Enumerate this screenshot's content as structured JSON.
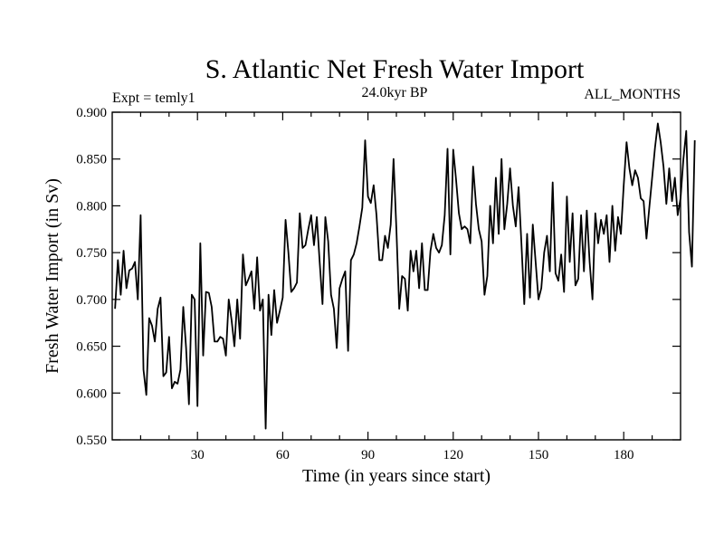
{
  "chart_data": {
    "type": "line",
    "title": "S. Atlantic Net Fresh Water Import",
    "subtitle_left": "Expt = temly1",
    "subtitle_center": "24.0kyr BP",
    "subtitle_right": "ALL_MONTHS",
    "xlabel": "Time (in years since start)",
    "ylabel": "Fresh Water Import (in Sv)",
    "xlim": [
      0,
      200
    ],
    "ylim": [
      0.55,
      0.9
    ],
    "xticks": [
      30,
      60,
      90,
      120,
      150,
      180
    ],
    "xtick_labels": [
      "30",
      "60",
      "90",
      "120",
      "150",
      "180"
    ],
    "yticks": [
      0.55,
      0.6,
      0.65,
      0.7,
      0.75,
      0.8,
      0.85,
      0.9
    ],
    "ytick_labels": [
      "0.550",
      "0.600",
      "0.650",
      "0.700",
      "0.750",
      "0.800",
      "0.850",
      "0.900"
    ],
    "series": [
      {
        "name": "Fresh Water Import",
        "x_start": 1,
        "x_step": 1,
        "values": [
          0.69,
          0.742,
          0.705,
          0.752,
          0.712,
          0.731,
          0.733,
          0.74,
          0.7,
          0.79,
          0.625,
          0.598,
          0.68,
          0.672,
          0.655,
          0.69,
          0.702,
          0.618,
          0.622,
          0.66,
          0.605,
          0.612,
          0.61,
          0.625,
          0.692,
          0.648,
          0.588,
          0.705,
          0.7,
          0.586,
          0.76,
          0.64,
          0.708,
          0.707,
          0.692,
          0.655,
          0.655,
          0.66,
          0.658,
          0.64,
          0.7,
          0.678,
          0.65,
          0.7,
          0.658,
          0.748,
          0.715,
          0.722,
          0.73,
          0.69,
          0.745,
          0.688,
          0.7,
          0.562,
          0.705,
          0.662,
          0.71,
          0.675,
          0.688,
          0.702,
          0.785,
          0.75,
          0.708,
          0.712,
          0.718,
          0.792,
          0.755,
          0.758,
          0.775,
          0.79,
          0.758,
          0.788,
          0.74,
          0.695,
          0.788,
          0.762,
          0.705,
          0.69,
          0.648,
          0.712,
          0.722,
          0.73,
          0.645,
          0.742,
          0.748,
          0.76,
          0.778,
          0.798,
          0.87,
          0.81,
          0.803,
          0.822,
          0.79,
          0.742,
          0.742,
          0.768,
          0.755,
          0.78,
          0.85,
          0.775,
          0.69,
          0.725,
          0.722,
          0.688,
          0.752,
          0.73,
          0.752,
          0.712,
          0.76,
          0.71,
          0.71,
          0.752,
          0.77,
          0.755,
          0.75,
          0.758,
          0.79,
          0.861,
          0.748,
          0.86,
          0.828,
          0.792,
          0.775,
          0.778,
          0.775,
          0.76,
          0.842,
          0.802,
          0.775,
          0.762,
          0.705,
          0.725,
          0.8,
          0.76,
          0.83,
          0.77,
          0.85,
          0.775,
          0.802,
          0.84,
          0.8,
          0.778,
          0.82,
          0.76,
          0.695,
          0.77,
          0.702,
          0.78,
          0.74,
          0.7,
          0.712,
          0.75,
          0.768,
          0.73,
          0.825,
          0.728,
          0.72,
          0.748,
          0.708,
          0.81,
          0.74,
          0.792,
          0.715,
          0.722,
          0.79,
          0.73,
          0.795,
          0.74,
          0.7,
          0.792,
          0.76,
          0.785,
          0.77,
          0.79,
          0.74,
          0.8,
          0.752,
          0.788,
          0.77,
          0.822,
          0.868,
          0.84,
          0.822,
          0.838,
          0.83,
          0.808,
          0.805,
          0.765,
          0.798,
          0.83,
          0.862,
          0.888,
          0.868,
          0.842,
          0.802,
          0.84,
          0.805,
          0.83,
          0.79,
          0.808,
          0.85,
          0.88,
          0.772,
          0.735,
          0.87
        ]
      }
    ]
  }
}
